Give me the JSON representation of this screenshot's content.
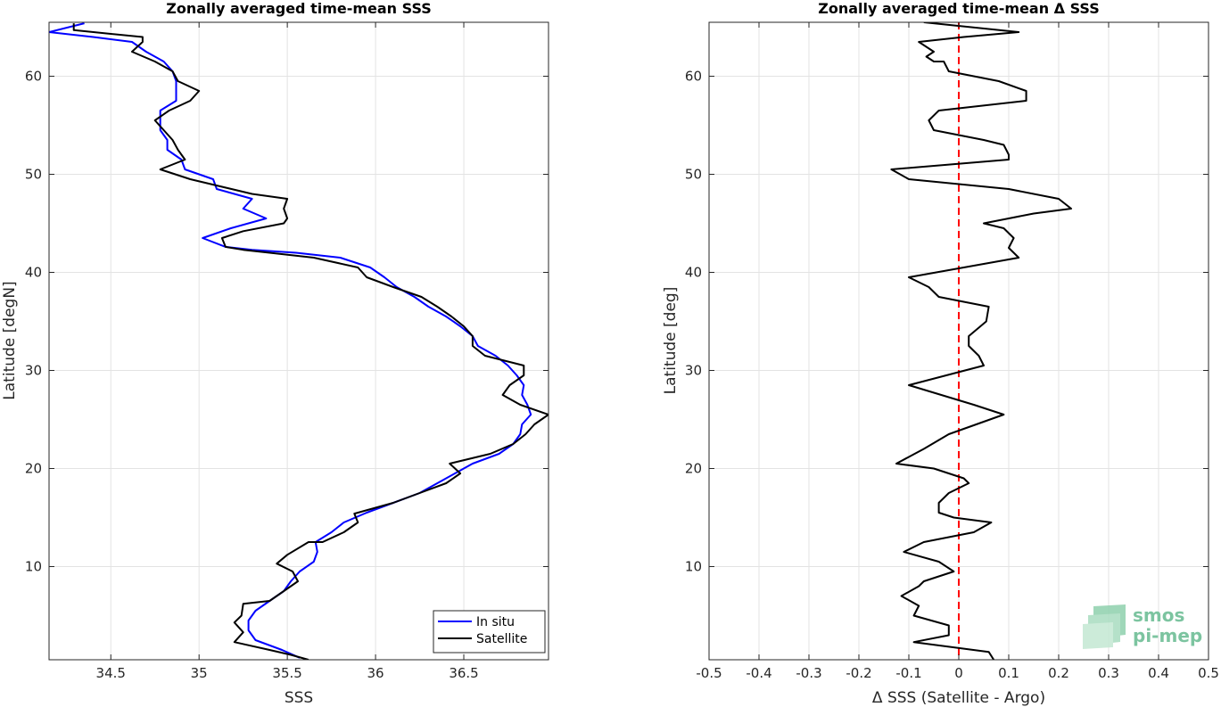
{
  "chart_data": [
    {
      "type": "line",
      "title": "Zonally averaged time-mean SSS",
      "xlabel": "SSS",
      "ylabel": "Latitude [degN]",
      "xlim": [
        34.15,
        36.98
      ],
      "ylim": [
        0.5,
        65.5
      ],
      "xticks": [
        "34.5",
        "35",
        "35.5",
        "36",
        "36.5"
      ],
      "xtick_values": [
        34.5,
        35.0,
        35.5,
        36.0,
        36.5
      ],
      "yticks": [
        "10",
        "20",
        "30",
        "40",
        "50",
        "60"
      ],
      "ytick_values": [
        10,
        20,
        30,
        40,
        50,
        60
      ],
      "grid": true,
      "legend": {
        "placement": "bottom-right",
        "entries": [
          {
            "label": "In situ",
            "color": "#0000ff"
          },
          {
            "label": "Satellite",
            "color": "#000000"
          }
        ]
      },
      "series": [
        {
          "name": "In situ",
          "color": "#0000ff",
          "points": [
            [
              35.57,
              0.7
            ],
            [
              35.47,
              1.5
            ],
            [
              35.32,
              2.5
            ],
            [
              35.28,
              3.5
            ],
            [
              35.28,
              4.5
            ],
            [
              35.32,
              5.5
            ],
            [
              35.4,
              6.5
            ],
            [
              35.48,
              7.5
            ],
            [
              35.52,
              8.5
            ],
            [
              35.57,
              9.5
            ],
            [
              35.65,
              10.5
            ],
            [
              35.67,
              11.5
            ],
            [
              35.66,
              12.5
            ],
            [
              35.75,
              13.5
            ],
            [
              35.82,
              14.5
            ],
            [
              35.95,
              15.5
            ],
            [
              36.1,
              16.5
            ],
            [
              36.25,
              17.5
            ],
            [
              36.35,
              18.5
            ],
            [
              36.45,
              19.5
            ],
            [
              36.55,
              20.5
            ],
            [
              36.7,
              21.5
            ],
            [
              36.78,
              22.5
            ],
            [
              36.82,
              23.5
            ],
            [
              36.83,
              24.5
            ],
            [
              36.88,
              25.5
            ],
            [
              36.86,
              26.5
            ],
            [
              36.83,
              27.5
            ],
            [
              36.84,
              28.5
            ],
            [
              36.8,
              29.5
            ],
            [
              36.75,
              30.5
            ],
            [
              36.68,
              31.5
            ],
            [
              36.58,
              32.5
            ],
            [
              36.55,
              33.5
            ],
            [
              36.48,
              34.5
            ],
            [
              36.4,
              35.5
            ],
            [
              36.3,
              36.5
            ],
            [
              36.22,
              37.5
            ],
            [
              36.12,
              38.5
            ],
            [
              36.05,
              39.5
            ],
            [
              35.97,
              40.5
            ],
            [
              35.8,
              41.5
            ],
            [
              35.55,
              42.0
            ],
            [
              35.3,
              42.3
            ],
            [
              35.15,
              42.6
            ],
            [
              35.02,
              43.5
            ],
            [
              35.18,
              44.5
            ],
            [
              35.38,
              45.5
            ],
            [
              35.25,
              46.5
            ],
            [
              35.3,
              47.5
            ],
            [
              35.1,
              48.5
            ],
            [
              35.08,
              49.5
            ],
            [
              34.92,
              50.5
            ],
            [
              34.9,
              51.5
            ],
            [
              34.82,
              52.5
            ],
            [
              34.82,
              53.5
            ],
            [
              34.78,
              54.5
            ],
            [
              34.78,
              55.5
            ],
            [
              34.78,
              56.5
            ],
            [
              34.87,
              57.5
            ],
            [
              34.87,
              58.5
            ],
            [
              34.87,
              59.5
            ],
            [
              34.85,
              60.5
            ],
            [
              34.8,
              61.5
            ],
            [
              34.7,
              62.5
            ],
            [
              34.62,
              63.5
            ],
            [
              34.4,
              64.0
            ],
            [
              34.15,
              64.5
            ],
            [
              34.35,
              65.4
            ]
          ]
        },
        {
          "name": "Satellite",
          "color": "#000000",
          "points": [
            [
              35.62,
              0.5
            ],
            [
              35.52,
              1.0
            ],
            [
              35.4,
              1.5
            ],
            [
              35.2,
              2.3
            ],
            [
              35.25,
              3.3
            ],
            [
              35.2,
              4.3
            ],
            [
              35.24,
              5.0
            ],
            [
              35.25,
              6.2
            ],
            [
              35.4,
              6.5
            ],
            [
              35.48,
              7.5
            ],
            [
              35.56,
              8.5
            ],
            [
              35.53,
              9.5
            ],
            [
              35.44,
              10.3
            ],
            [
              35.5,
              11.2
            ],
            [
              35.62,
              12.5
            ],
            [
              35.7,
              12.5
            ],
            [
              35.82,
              13.5
            ],
            [
              35.9,
              14.5
            ],
            [
              35.88,
              15.4
            ],
            [
              36.1,
              16.5
            ],
            [
              36.25,
              17.5
            ],
            [
              36.4,
              18.5
            ],
            [
              36.48,
              19.5
            ],
            [
              36.42,
              20.5
            ],
            [
              36.65,
              21.5
            ],
            [
              36.78,
              22.5
            ],
            [
              36.85,
              23.5
            ],
            [
              36.9,
              24.5
            ],
            [
              36.98,
              25.5
            ],
            [
              36.82,
              26.5
            ],
            [
              36.72,
              27.5
            ],
            [
              36.76,
              28.5
            ],
            [
              36.84,
              29.5
            ],
            [
              36.84,
              30.5
            ],
            [
              36.62,
              31.5
            ],
            [
              36.55,
              32.5
            ],
            [
              36.55,
              33.5
            ],
            [
              36.5,
              34.5
            ],
            [
              36.43,
              35.5
            ],
            [
              36.35,
              36.5
            ],
            [
              36.26,
              37.5
            ],
            [
              36.1,
              38.5
            ],
            [
              35.95,
              39.5
            ],
            [
              35.9,
              40.5
            ],
            [
              35.65,
              41.5
            ],
            [
              35.4,
              42.0
            ],
            [
              35.25,
              42.3
            ],
            [
              35.15,
              42.6
            ],
            [
              35.13,
              43.5
            ],
            [
              35.25,
              44.2
            ],
            [
              35.48,
              45.0
            ],
            [
              35.5,
              45.5
            ],
            [
              35.48,
              46.5
            ],
            [
              35.5,
              47.5
            ],
            [
              35.3,
              48.0
            ],
            [
              34.95,
              49.5
            ],
            [
              34.78,
              50.5
            ],
            [
              34.92,
              51.5
            ],
            [
              34.88,
              52.5
            ],
            [
              34.85,
              53.5
            ],
            [
              34.8,
              54.5
            ],
            [
              34.75,
              55.5
            ],
            [
              34.83,
              56.5
            ],
            [
              34.95,
              57.5
            ],
            [
              35.0,
              58.5
            ],
            [
              34.88,
              59.5
            ],
            [
              34.85,
              60.5
            ],
            [
              34.75,
              61.5
            ],
            [
              34.62,
              62.5
            ],
            [
              34.68,
              63.5
            ],
            [
              34.68,
              64.0
            ],
            [
              34.29,
              64.7
            ],
            [
              34.29,
              65.4
            ]
          ]
        }
      ]
    },
    {
      "type": "line",
      "title": "Zonally averaged time-mean Δ SSS",
      "xlabel": "Δ SSS (Satellite - Argo)",
      "ylabel": "Latitude [deg]",
      "xlim": [
        -0.5,
        0.5
      ],
      "ylim": [
        0.5,
        65.5
      ],
      "xticks": [
        "-0.5",
        "-0.4",
        "-0.3",
        "-0.2",
        "-0.1",
        "0",
        "0.1",
        "0.2",
        "0.3",
        "0.4",
        "0.5"
      ],
      "xtick_values": [
        -0.5,
        -0.4,
        -0.3,
        -0.2,
        -0.1,
        0,
        0.1,
        0.2,
        0.3,
        0.4,
        0.5
      ],
      "yticks": [
        "10",
        "20",
        "30",
        "40",
        "50",
        "60"
      ],
      "ytick_values": [
        10,
        20,
        30,
        40,
        50,
        60
      ],
      "grid": true,
      "reference_line": {
        "x": 0,
        "color": "#ff0000",
        "style": "dashed"
      },
      "series": [
        {
          "color": "#000000",
          "points": [
            [
              0.07,
              0.5
            ],
            [
              0.06,
              1.3
            ],
            [
              -0.09,
              2.3
            ],
            [
              -0.02,
              3.0
            ],
            [
              -0.02,
              4.0
            ],
            [
              -0.09,
              5.0
            ],
            [
              -0.08,
              6.0
            ],
            [
              -0.115,
              7.0
            ],
            [
              -0.08,
              8.0
            ],
            [
              -0.07,
              8.5
            ],
            [
              -0.01,
              9.5
            ],
            [
              -0.04,
              10.5
            ],
            [
              -0.11,
              11.5
            ],
            [
              -0.07,
              12.5
            ],
            [
              0.03,
              13.5
            ],
            [
              0.065,
              14.5
            ],
            [
              -0.01,
              15.0
            ],
            [
              -0.04,
              15.5
            ],
            [
              -0.04,
              16.5
            ],
            [
              -0.02,
              17.5
            ],
            [
              0.02,
              18.5
            ],
            [
              0.01,
              19.0
            ],
            [
              -0.05,
              20.0
            ],
            [
              -0.125,
              20.5
            ],
            [
              -0.07,
              22.0
            ],
            [
              -0.02,
              23.5
            ],
            [
              0.09,
              25.5
            ],
            [
              0.03,
              26.5
            ],
            [
              -0.1,
              28.5
            ],
            [
              0.05,
              30.5
            ],
            [
              0.04,
              31.5
            ],
            [
              0.02,
              32.5
            ],
            [
              0.02,
              33.5
            ],
            [
              0.055,
              35.0
            ],
            [
              0.06,
              36.5
            ],
            [
              -0.04,
              37.5
            ],
            [
              -0.06,
              38.5
            ],
            [
              -0.1,
              39.5
            ],
            [
              0.12,
              41.5
            ],
            [
              0.1,
              42.5
            ],
            [
              0.11,
              43.5
            ],
            [
              0.09,
              44.5
            ],
            [
              0.05,
              45.0
            ],
            [
              0.1,
              45.5
            ],
            [
              0.15,
              46.0
            ],
            [
              0.225,
              46.5
            ],
            [
              0.2,
              47.5
            ],
            [
              0.1,
              48.5
            ],
            [
              -0.1,
              49.5
            ],
            [
              -0.135,
              50.5
            ],
            [
              0.1,
              51.5
            ],
            [
              0.1,
              52.0
            ],
            [
              0.09,
              53.0
            ],
            [
              0.05,
              53.5
            ],
            [
              -0.05,
              54.5
            ],
            [
              -0.06,
              55.5
            ],
            [
              -0.04,
              56.5
            ],
            [
              0.135,
              57.5
            ],
            [
              0.135,
              58.5
            ],
            [
              0.08,
              59.5
            ],
            [
              -0.02,
              60.5
            ],
            [
              -0.03,
              61.5
            ],
            [
              -0.05,
              61.5
            ],
            [
              -0.065,
              62.0
            ],
            [
              -0.05,
              62.5
            ],
            [
              -0.08,
              63.5
            ],
            [
              0.01,
              64.0
            ],
            [
              0.12,
              64.5
            ],
            [
              -0.07,
              65.5
            ]
          ]
        }
      ]
    }
  ],
  "logo": {
    "line1": "smos",
    "line2": "pi-mep",
    "color": "#7cc4a0"
  }
}
